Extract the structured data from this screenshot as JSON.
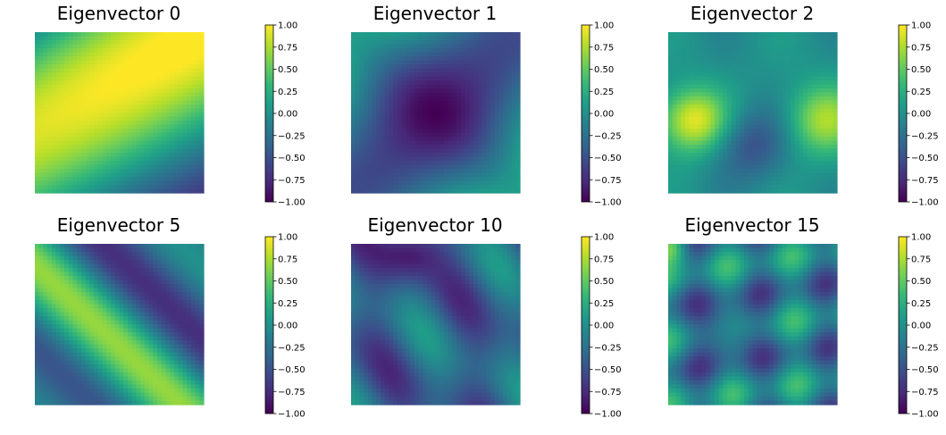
{
  "chart_data": [
    {
      "type": "heatmap",
      "title": "Eigenvector 0",
      "colormap": "viridis",
      "colorbar": {
        "range": [
          -1.0,
          1.0
        ],
        "ticks": [
          1.0,
          0.75,
          0.5,
          0.25,
          0.0,
          -0.25,
          -0.5,
          -0.75,
          -1.0
        ],
        "tick_labels": [
          "1.00",
          "0.75",
          "0.50",
          "0.25",
          "0.00",
          "−0.25",
          "−0.50",
          "−0.75",
          "−1.00"
        ]
      },
      "axes_visible": false,
      "pattern": [
        {
          "x": 0.2,
          "y": 0.8,
          "value": 1.0
        },
        {
          "x": 0.75,
          "y": 0.15,
          "value": -1.0
        }
      ]
    },
    {
      "type": "heatmap",
      "title": "Eigenvector 1",
      "colormap": "viridis",
      "colorbar": {
        "range": [
          -1.0,
          1.0
        ],
        "ticks": [
          1.0,
          0.75,
          0.5,
          0.25,
          0.0,
          -0.25,
          -0.5,
          -0.75,
          -1.0
        ],
        "tick_labels": [
          "1.00",
          "0.75",
          "0.50",
          "0.25",
          "0.00",
          "−0.25",
          "−0.50",
          "−0.75",
          "−1.00"
        ]
      },
      "axes_visible": false,
      "pattern": [
        {
          "x": 0.05,
          "y": 0.9,
          "value": 0.45
        },
        {
          "x": 0.5,
          "y": 0.5,
          "value": -1.0
        },
        {
          "x": 0.95,
          "y": 0.05,
          "value": 0.55
        }
      ]
    },
    {
      "type": "heatmap",
      "title": "Eigenvector 2",
      "colormap": "viridis",
      "colorbar": {
        "range": [
          -1.0,
          1.0
        ],
        "ticks": [
          1.0,
          0.75,
          0.5,
          0.25,
          0.0,
          -0.25,
          -0.5,
          -0.75,
          -1.0
        ],
        "tick_labels": [
          "1.00",
          "0.75",
          "0.50",
          "0.25",
          "0.00",
          "−0.25",
          "−0.50",
          "−0.75",
          "−1.00"
        ]
      },
      "axes_visible": false,
      "pattern": [
        {
          "x": 0.15,
          "y": 0.45,
          "value": 1.0
        },
        {
          "x": 0.9,
          "y": 0.45,
          "value": 0.7
        },
        {
          "x": 0.5,
          "y": 0.3,
          "value": -0.45
        },
        {
          "x": 0.55,
          "y": 0.85,
          "value": -0.1
        }
      ]
    },
    {
      "type": "heatmap",
      "title": "Eigenvector 5",
      "colormap": "viridis",
      "colorbar": {
        "range": [
          -1.0,
          1.0
        ],
        "ticks": [
          1.0,
          0.75,
          0.5,
          0.25,
          0.0,
          -0.25,
          -0.5,
          -0.75,
          -1.0
        ],
        "tick_labels": [
          "1.00",
          "0.75",
          "0.50",
          "0.25",
          "0.00",
          "−0.25",
          "−0.50",
          "−0.75",
          "−1.00"
        ]
      },
      "axes_visible": false,
      "pattern": [
        {
          "x": 0.05,
          "y": 0.95,
          "value": 0.9
        },
        {
          "x": 0.45,
          "y": 0.1,
          "value": -1.0
        },
        {
          "x": 0.95,
          "y": 0.05,
          "value": 0.6
        }
      ]
    },
    {
      "type": "heatmap",
      "title": "Eigenvector 10",
      "colormap": "viridis",
      "colorbar": {
        "range": [
          -1.0,
          1.0
        ],
        "ticks": [
          1.0,
          0.75,
          0.5,
          0.25,
          0.0,
          -0.25,
          -0.5,
          -0.75,
          -1.0
        ],
        "tick_labels": [
          "1.00",
          "0.75",
          "0.50",
          "0.25",
          "0.00",
          "−0.25",
          "−0.50",
          "−0.75",
          "−1.00"
        ]
      },
      "axes_visible": false,
      "pattern": [
        {
          "x": 0.35,
          "y": 0.95,
          "value": -1.0
        },
        {
          "x": 0.7,
          "y": 0.6,
          "value": 0.35
        },
        {
          "x": 0.4,
          "y": 0.4,
          "value": -0.7
        }
      ]
    },
    {
      "type": "heatmap",
      "title": "Eigenvector 15",
      "colormap": "viridis",
      "colorbar": {
        "range": [
          -1.0,
          1.0
        ],
        "ticks": [
          1.0,
          0.75,
          0.5,
          0.25,
          0.0,
          -0.25,
          -0.5,
          -0.75,
          -1.0
        ],
        "tick_labels": [
          "1.00",
          "0.75",
          "0.50",
          "0.25",
          "0.00",
          "−0.25",
          "−0.50",
          "−0.75",
          "−1.00"
        ]
      },
      "axes_visible": false,
      "pattern": [
        {
          "x": 0.05,
          "y": 0.95,
          "value": 0.9
        },
        {
          "x": 0.1,
          "y": 0.7,
          "value": -1.0
        },
        {
          "x": 0.35,
          "y": 0.45,
          "value": -1.0
        },
        {
          "x": 0.75,
          "y": 0.65,
          "value": 0.55
        }
      ]
    }
  ]
}
